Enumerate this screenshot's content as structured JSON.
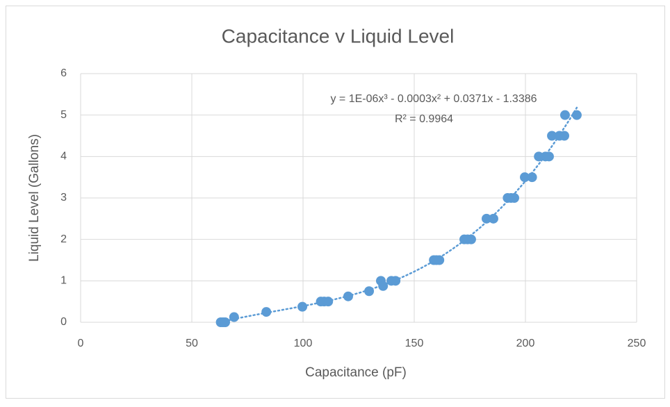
{
  "chart_data": {
    "type": "scatter",
    "title": "Capacitance v Liquid Level",
    "x_label": "Capacitance (pF)",
    "y_label": "Liquid Level (Gallons)",
    "trendline_equation": "y = 1E-06x³ - 0.0003x² + 0.0371x - 1.3386",
    "trendline_r2": "R² = 0.9964",
    "series": [
      {
        "color": "#5b9bd5",
        "x": [
          63,
          64,
          65,
          69,
          83.5,
          99.7,
          108,
          109.5,
          111.3,
          120.3,
          129.7,
          135,
          136,
          139.7,
          141.6,
          158.8,
          160,
          161.3,
          172.5,
          174,
          175.6,
          182.5,
          185.6,
          192,
          193.5,
          195,
          199.7,
          203,
          206,
          209,
          210.6,
          211.9,
          215.3,
          217.5,
          217.8,
          223.1
        ],
        "values": [
          0,
          0,
          0,
          0.125,
          0.25,
          0.375,
          0.5,
          0.5,
          0.5,
          0.625,
          0.75,
          1,
          0.875,
          1,
          1,
          1.5,
          1.5,
          1.5,
          2,
          2,
          2,
          2.5,
          2.5,
          3,
          3,
          3,
          3.5,
          3.5,
          4,
          4,
          4,
          4.5,
          4.5,
          4.5,
          5,
          5
        ]
      }
    ],
    "xlim": [
      0,
      250
    ],
    "xticks": [
      0,
      50,
      100,
      150,
      200,
      250
    ],
    "ylim": [
      0,
      6
    ],
    "yticks": [
      0,
      1,
      2,
      3,
      4,
      5,
      6
    ],
    "grid": true
  }
}
